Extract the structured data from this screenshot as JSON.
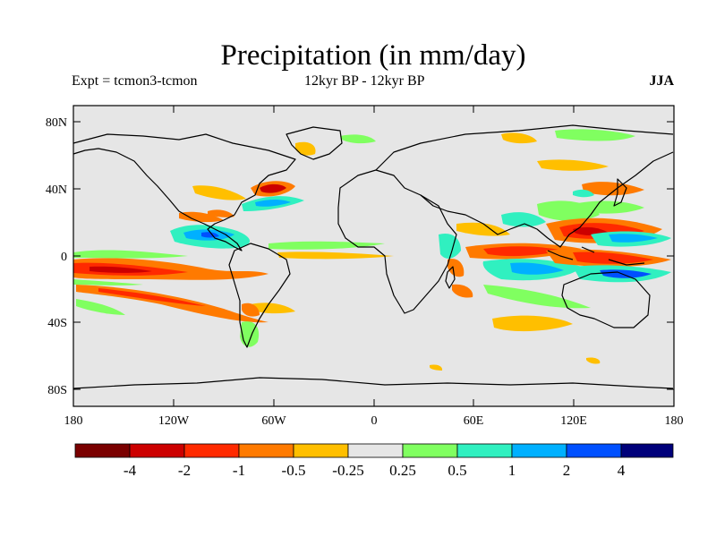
{
  "header": {
    "title": "Precipitation (in mm/day)",
    "left": "Expt = tcmon3-tcmon",
    "center": "12kyr BP - 12kyr BP",
    "right": "JJA"
  },
  "axes": {
    "lon_ticks": [
      "180",
      "120W",
      "60W",
      "0",
      "60E",
      "120E",
      "180"
    ],
    "lat_ticks": [
      "80N",
      "40N",
      "0",
      "40S",
      "80S"
    ]
  },
  "colorbar": {
    "colors": [
      "#7a0000",
      "#cc0000",
      "#ff2a00",
      "#ff7a00",
      "#ffbf00",
      "#e6e6e6",
      "#80ff60",
      "#30f0c0",
      "#00b0ff",
      "#0050ff",
      "#00007a"
    ],
    "labels": [
      "-4",
      "-2",
      "-1",
      "-0.5",
      "-0.25",
      "0.25",
      "0.5",
      "1",
      "2",
      "4"
    ]
  },
  "colors": {
    "ocean": "#e6e6e6",
    "coast": "#000000"
  }
}
